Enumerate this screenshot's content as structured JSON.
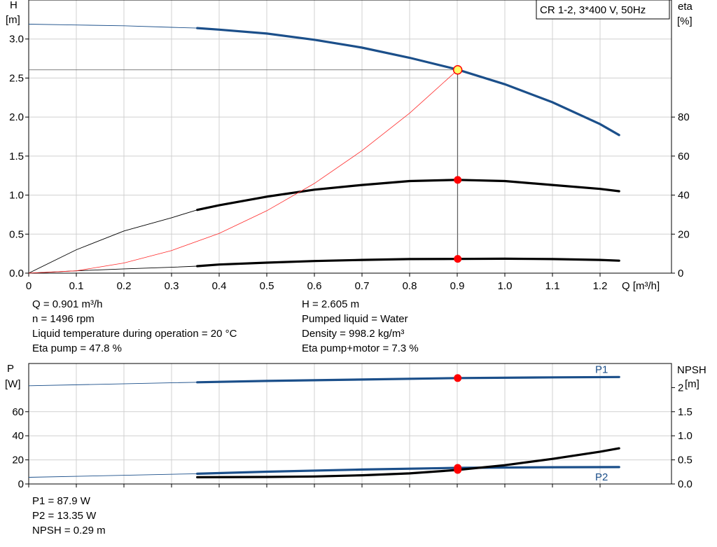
{
  "pump_label": "CR 1-2, 3*400 V, 50Hz",
  "colors": {
    "head": "#1b4f8a",
    "power": "#1b4f8a",
    "black": "#000000",
    "efficiency_thin": "#ff2a2a",
    "grid": "#d0d0d0",
    "marker": "#ff0000",
    "duty_marker": "#ffff66"
  },
  "chart_data": [
    {
      "id": "qh",
      "type": "line",
      "xlabel": "Q [m³/h]",
      "ylabel_left": [
        "H",
        "[m]"
      ],
      "ylabel_right": [
        "eta",
        "[%]"
      ],
      "xlim": [
        0,
        1.35
      ],
      "ylim": [
        0,
        3.5
      ],
      "ylim_right": [
        0,
        140
      ],
      "x_ticks": [
        0,
        0.1,
        0.2,
        0.3,
        0.4,
        0.5,
        0.6,
        0.7,
        0.8,
        0.9,
        1.0,
        1.1,
        1.2
      ],
      "x_tick_labels": [
        "0",
        "0.1",
        "0.2",
        "0.3",
        "0.4",
        "0.5",
        "0.6",
        "0.7",
        "0.8",
        "0.9",
        "1.0",
        "1.1",
        "1.2"
      ],
      "y_ticks": [
        0,
        0.5,
        1.0,
        1.5,
        2.0,
        2.5,
        3.0
      ],
      "y_tick_labels": [
        "0.0",
        "0.5",
        "1.0",
        "1.5",
        "2.0",
        "2.5",
        "3.0"
      ],
      "y2_ticks": [
        0,
        20,
        40,
        60,
        80
      ],
      "y2_tick_labels": [
        "0",
        "20",
        "40",
        "60",
        "80"
      ],
      "grid": true,
      "series": [
        {
          "key": "head",
          "axis": "left",
          "color": "#1b4f8a",
          "thin_to": 0.354,
          "x": [
            0,
            0.1,
            0.2,
            0.3,
            0.354,
            0.4,
            0.5,
            0.6,
            0.7,
            0.8,
            0.9,
            1.0,
            1.1,
            1.2,
            1.24
          ],
          "y": [
            3.19,
            3.18,
            3.17,
            3.15,
            3.14,
            3.12,
            3.07,
            2.99,
            2.89,
            2.76,
            2.61,
            2.42,
            2.19,
            1.91,
            1.77
          ]
        },
        {
          "key": "eta_pump",
          "axis": "right",
          "color": "#000000",
          "thin_to": 0.354,
          "x": [
            0,
            0.1,
            0.2,
            0.3,
            0.354,
            0.4,
            0.5,
            0.6,
            0.7,
            0.8,
            0.9,
            1.0,
            1.1,
            1.2,
            1.24
          ],
          "y": [
            0,
            12,
            21.6,
            28.4,
            32.4,
            34.8,
            39.2,
            42.8,
            45.2,
            47.2,
            47.8,
            47.2,
            45.2,
            43.2,
            42
          ]
        },
        {
          "key": "eta_total",
          "axis": "right",
          "color": "#000000",
          "thin_to": 0.354,
          "x": [
            0,
            0.1,
            0.2,
            0.3,
            0.354,
            0.4,
            0.5,
            0.6,
            0.7,
            0.8,
            0.9,
            1.0,
            1.1,
            1.2,
            1.24
          ],
          "y": [
            0,
            1.2,
            2.2,
            3.0,
            3.6,
            4.4,
            5.4,
            6.2,
            6.8,
            7.2,
            7.3,
            7.4,
            7.2,
            6.8,
            6.4
          ]
        },
        {
          "key": "system",
          "axis": "left",
          "color": "#ff2a2a",
          "thin_to": 99,
          "x": [
            0,
            0.1,
            0.2,
            0.3,
            0.4,
            0.5,
            0.6,
            0.7,
            0.8,
            0.901
          ],
          "y": [
            0,
            0.03,
            0.13,
            0.29,
            0.51,
            0.8,
            1.15,
            1.57,
            2.05,
            2.605
          ]
        }
      ],
      "duty_point": {
        "q": 0.901,
        "h": 2.605,
        "eta_pump": 47.8,
        "eta_total": 7.3
      }
    },
    {
      "id": "power",
      "type": "line",
      "ylabel_left": [
        "P",
        "[W]"
      ],
      "ylabel_right": [
        "NPSH",
        "[m]"
      ],
      "xlim": [
        0,
        1.35
      ],
      "ylim": [
        0,
        100
      ],
      "ylim_right": [
        0,
        2.5
      ],
      "y_ticks": [
        0,
        20,
        40,
        60
      ],
      "y_tick_labels": [
        "0",
        "20",
        "40",
        "60"
      ],
      "y2_ticks": [
        0,
        0.5,
        1.0,
        1.5,
        2.0
      ],
      "y2_tick_labels": [
        "0.0",
        "0.5",
        "1.0",
        "1.5",
        "2"
      ],
      "grid": true,
      "series": [
        {
          "key": "P1",
          "name": "P1",
          "axis": "left",
          "color": "#1b4f8a",
          "thin_to": 0.354,
          "x": [
            0,
            0.354,
            0.5,
            0.7,
            0.901,
            1.1,
            1.24
          ],
          "y": [
            81.5,
            84.4,
            85.5,
            86.7,
            87.9,
            88.5,
            88.8
          ]
        },
        {
          "key": "P2",
          "name": "P2",
          "axis": "left",
          "color": "#1b4f8a",
          "thin_to": 0.354,
          "x": [
            0,
            0.354,
            0.5,
            0.7,
            0.901,
            1.1,
            1.24
          ],
          "y": [
            5.5,
            8.5,
            10.2,
            12,
            13.35,
            13.9,
            14
          ]
        },
        {
          "key": "NPSH",
          "axis": "right",
          "color": "#000000",
          "thin_to": 0.354,
          "x": [
            0.354,
            0.5,
            0.6,
            0.7,
            0.8,
            0.9,
            1.0,
            1.1,
            1.2,
            1.24
          ],
          "y": [
            0.14,
            0.145,
            0.155,
            0.18,
            0.22,
            0.29,
            0.39,
            0.52,
            0.67,
            0.74
          ]
        }
      ],
      "duty_point": {
        "q": 0.901,
        "p1": 87.9,
        "p2": 13.35,
        "npsh": 0.29
      }
    }
  ],
  "info_top_left": [
    "Q = 0.901 m³/h",
    "n = 1496 rpm",
    "Liquid temperature during operation = 20 °C",
    "Eta pump = 47.8 %"
  ],
  "info_top_right": [
    "H = 2.605 m",
    "Pumped liquid = Water",
    "Density = 998.2 kg/m³",
    "Eta pump+motor = 7.3 %"
  ],
  "info_bottom": [
    "P1 = 87.9 W",
    "P2 = 13.35 W",
    "NPSH = 0.29 m"
  ]
}
